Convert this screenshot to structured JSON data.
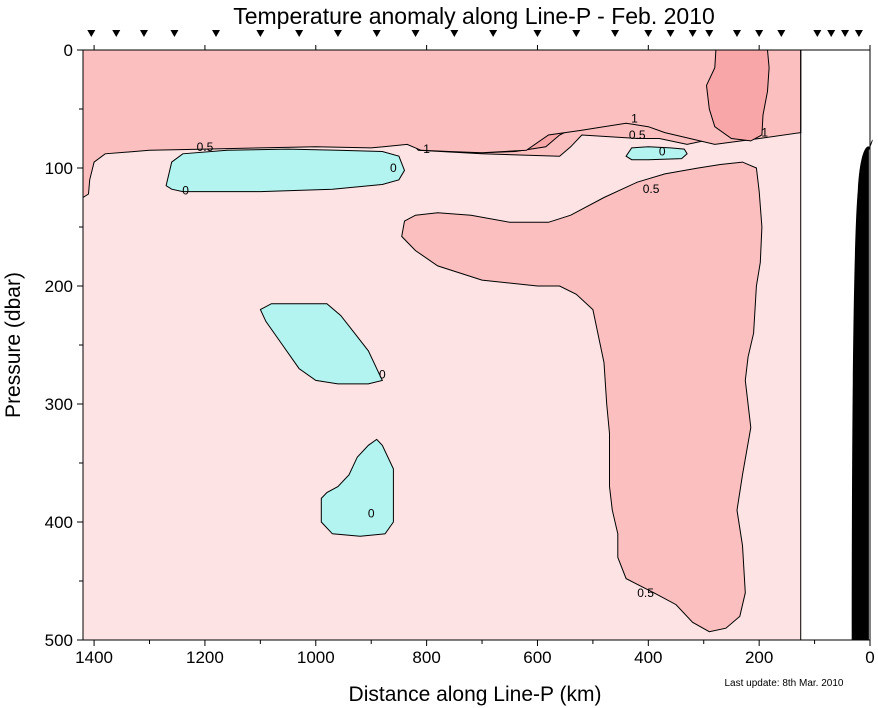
{
  "chart_data": {
    "type": "contour",
    "title": "Temperature anomaly along Line-P - Feb. 2010",
    "xlabel": "Distance along Line-P (km)",
    "ylabel": "Pressure (dbar)",
    "xlim": [
      1420,
      0
    ],
    "ylim": [
      0,
      500
    ],
    "x_ticks": [
      1400,
      1200,
      1000,
      800,
      600,
      400,
      200,
      0
    ],
    "y_ticks": [
      0,
      100,
      200,
      300,
      400,
      500
    ],
    "x_ticks_minor": [
      1300,
      1100,
      900,
      700,
      500,
      300,
      100
    ],
    "y_ticks_minor": [
      50,
      150,
      250,
      350,
      450
    ],
    "stations_km": [
      1405,
      1360,
      1310,
      1255,
      1180,
      1100,
      1030,
      960,
      890,
      820,
      750,
      680,
      600,
      530,
      460,
      400,
      360,
      320,
      290,
      240,
      200,
      160,
      95,
      70,
      45,
      20
    ],
    "data_limit_km": 125,
    "contour_levels": [
      0,
      0.5,
      1
    ],
    "level_colors": {
      "below_0": "#b3f4f0",
      "0_to_0.5": "#fde3e3",
      "0.5_to_1": "#fbbfbf",
      "above_1": "#f9a6a8"
    },
    "regions": [
      {
        "level": "0.5_to_1",
        "points": [
          [
            1420,
            0
          ],
          [
            830,
            0
          ],
          [
            830,
            30
          ],
          [
            835,
            75
          ],
          [
            815,
            85
          ],
          [
            700,
            88
          ],
          [
            560,
            90
          ],
          [
            540,
            82
          ],
          [
            520,
            72
          ],
          [
            420,
            75
          ],
          [
            380,
            75
          ],
          [
            330,
            80
          ],
          [
            280,
            75
          ],
          [
            200,
            70
          ],
          [
            125,
            70
          ],
          [
            125,
            0
          ]
        ]
      },
      {
        "level": "above_1",
        "points": [
          [
            830,
            0
          ],
          [
            840,
            10
          ],
          [
            850,
            30
          ],
          [
            855,
            55
          ],
          [
            850,
            70
          ],
          [
            820,
            82
          ],
          [
            760,
            86
          ],
          [
            700,
            87
          ],
          [
            640,
            86
          ],
          [
            585,
            82
          ],
          [
            560,
            72
          ],
          [
            530,
            65
          ],
          [
            470,
            60
          ],
          [
            415,
            58
          ],
          [
            410,
            40
          ],
          [
            410,
            0
          ]
        ]
      },
      {
        "level": "0.5_to_1",
        "points": [
          [
            1420,
            0
          ],
          [
            1420,
            125
          ],
          [
            1410,
            122
          ],
          [
            1408,
            110
          ],
          [
            1400,
            95
          ],
          [
            1380,
            88
          ],
          [
            1300,
            85
          ],
          [
            1200,
            84
          ],
          [
            1100,
            83
          ],
          [
            1000,
            82
          ],
          [
            900,
            83
          ],
          [
            835,
            80
          ],
          [
            810,
            85
          ],
          [
            760,
            86
          ],
          [
            700,
            87
          ],
          [
            620,
            85
          ],
          [
            580,
            72
          ],
          [
            520,
            68
          ],
          [
            440,
            62
          ],
          [
            400,
            65
          ],
          [
            370,
            70
          ],
          [
            280,
            80
          ],
          [
            200,
            75
          ],
          [
            125,
            70
          ],
          [
            125,
            0
          ]
        ]
      },
      {
        "level": "above_1",
        "points": [
          [
            278,
            0
          ],
          [
            280,
            15
          ],
          [
            295,
            30
          ],
          [
            290,
            50
          ],
          [
            280,
            65
          ],
          [
            250,
            75
          ],
          [
            215,
            77
          ],
          [
            195,
            72
          ],
          [
            193,
            55
          ],
          [
            185,
            35
          ],
          [
            182,
            15
          ],
          [
            185,
            0
          ]
        ]
      },
      {
        "level": "0.5_to_1",
        "points": [
          [
            840,
            145
          ],
          [
            820,
            140
          ],
          [
            780,
            138
          ],
          [
            720,
            140
          ],
          [
            650,
            146
          ],
          [
            580,
            146
          ],
          [
            540,
            140
          ],
          [
            480,
            125
          ],
          [
            420,
            112
          ],
          [
            370,
            105
          ],
          [
            310,
            100
          ],
          [
            270,
            97
          ],
          [
            230,
            95
          ],
          [
            205,
            100
          ],
          [
            200,
            120
          ],
          [
            195,
            150
          ],
          [
            198,
            180
          ],
          [
            205,
            200
          ],
          [
            210,
            240
          ],
          [
            220,
            260
          ],
          [
            225,
            280
          ],
          [
            215,
            320
          ],
          [
            230,
            360
          ],
          [
            240,
            390
          ],
          [
            230,
            420
          ],
          [
            225,
            460
          ],
          [
            235,
            480
          ],
          [
            260,
            490
          ],
          [
            290,
            493
          ],
          [
            320,
            485
          ],
          [
            350,
            470
          ],
          [
            390,
            460
          ],
          [
            440,
            448
          ],
          [
            455,
            430
          ],
          [
            455,
            410
          ],
          [
            465,
            390
          ],
          [
            470,
            370
          ],
          [
            470,
            325
          ],
          [
            475,
            300
          ],
          [
            480,
            265
          ],
          [
            500,
            220
          ],
          [
            530,
            207
          ],
          [
            560,
            200
          ],
          [
            600,
            200
          ],
          [
            700,
            195
          ],
          [
            780,
            183
          ],
          [
            820,
            170
          ],
          [
            845,
            158
          ]
        ]
      },
      {
        "level": "below_0",
        "points": [
          [
            1270,
            115
          ],
          [
            1265,
            105
          ],
          [
            1260,
            95
          ],
          [
            1240,
            88
          ],
          [
            1160,
            85
          ],
          [
            1050,
            84
          ],
          [
            960,
            85
          ],
          [
            880,
            86
          ],
          [
            850,
            90
          ],
          [
            840,
            102
          ],
          [
            850,
            110
          ],
          [
            880,
            114
          ],
          [
            970,
            118
          ],
          [
            1100,
            120
          ],
          [
            1240,
            120
          ],
          [
            1260,
            118
          ]
        ]
      },
      {
        "level": "below_0",
        "points": [
          [
            1100,
            220
          ],
          [
            1080,
            215
          ],
          [
            1020,
            215
          ],
          [
            980,
            215
          ],
          [
            955,
            225
          ],
          [
            930,
            240
          ],
          [
            905,
            255
          ],
          [
            890,
            270
          ],
          [
            880,
            280
          ],
          [
            905,
            283
          ],
          [
            960,
            283
          ],
          [
            1000,
            280
          ],
          [
            1030,
            270
          ],
          [
            1060,
            250
          ],
          [
            1090,
            230
          ]
        ]
      },
      {
        "level": "below_0",
        "points": [
          [
            990,
            380
          ],
          [
            980,
            375
          ],
          [
            960,
            370
          ],
          [
            940,
            360
          ],
          [
            925,
            345
          ],
          [
            905,
            335
          ],
          [
            890,
            330
          ],
          [
            880,
            335
          ],
          [
            860,
            355
          ],
          [
            860,
            400
          ],
          [
            875,
            410
          ],
          [
            920,
            412
          ],
          [
            970,
            410
          ],
          [
            990,
            400
          ]
        ]
      },
      {
        "level": "below_0",
        "points": [
          [
            440,
            90
          ],
          [
            430,
            83
          ],
          [
            400,
            82
          ],
          [
            360,
            83
          ],
          [
            335,
            84
          ],
          [
            330,
            88
          ],
          [
            340,
            92
          ],
          [
            400,
            93
          ],
          [
            430,
            93
          ]
        ]
      }
    ],
    "contour_labels": [
      {
        "text": "0.5",
        "x": 1200,
        "y": 82
      },
      {
        "text": "1",
        "x": 800,
        "y": 84
      },
      {
        "text": "0",
        "x": 1235,
        "y": 119
      },
      {
        "text": "0",
        "x": 860,
        "y": 100
      },
      {
        "text": "0",
        "x": 880,
        "y": 275
      },
      {
        "text": "0",
        "x": 900,
        "y": 393
      },
      {
        "text": "1",
        "x": 425,
        "y": 58
      },
      {
        "text": "0.5",
        "x": 420,
        "y": 72
      },
      {
        "text": "0",
        "x": 375,
        "y": 86
      },
      {
        "text": "0.5",
        "x": 395,
        "y": 118
      },
      {
        "text": "0.5",
        "x": 405,
        "y": 460
      },
      {
        "text": "1",
        "x": 190,
        "y": 70
      }
    ],
    "bathymetry_color": "#000000",
    "last_update": "Last update: 8th Mar. 2010"
  }
}
